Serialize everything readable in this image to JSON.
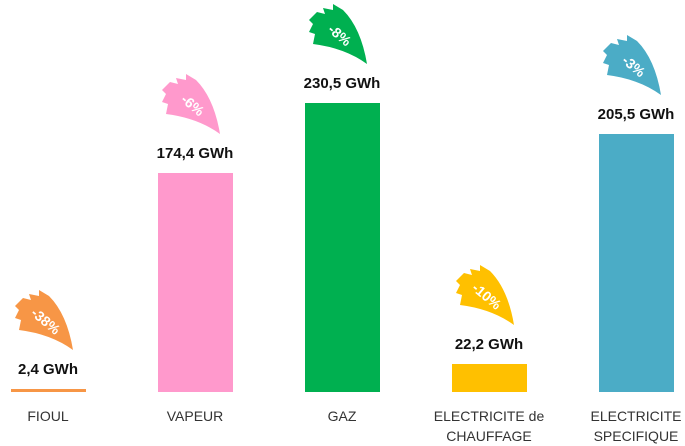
{
  "chart_data": {
    "type": "bar",
    "categories": [
      "FIOUL",
      "VAPEUR",
      "GAZ",
      "ELECTRICITE de CHAUFFAGE",
      "ELECTRICITE SPECIFIQUE"
    ],
    "values": [
      2.4,
      174.4,
      230.5,
      22.2,
      205.5
    ],
    "value_labels": [
      "2,4 GWh",
      "174,4 GWh",
      "230,5 GWh",
      "22,2 GWh",
      "205,5 GWh"
    ],
    "colors": [
      "#f79646",
      "#ff99cc",
      "#00b050",
      "#ffc000",
      "#4bacc6"
    ],
    "annotations": [
      "-38%",
      "-6%",
      "-8%",
      "-10%",
      "-3%"
    ]
  }
}
